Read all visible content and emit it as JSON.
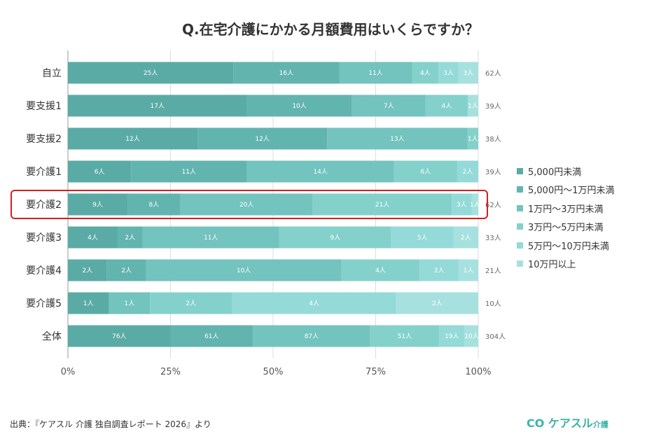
{
  "chart_data": {
    "type": "bar",
    "orientation": "horizontal",
    "stacked": "percent",
    "title": "Q.在宅介護にかかる月額費用はいくらですか？",
    "categories": [
      "自立",
      "要支援1",
      "要支援2",
      "要介護1",
      "要介護2",
      "要介護3",
      "要介護4",
      "要介護5",
      "全体"
    ],
    "totals": [
      "62人",
      "39人",
      "38人",
      "39人",
      "62人",
      "33人",
      "21人",
      "10人",
      "304人"
    ],
    "unit": "人",
    "series": [
      {
        "name": "5,000円未満",
        "color": "#5aaba6",
        "values": [
          25,
          17,
          12,
          6,
          9,
          4,
          2,
          1,
          76
        ]
      },
      {
        "name": "5,000円～1万円未満",
        "color": "#62b4af",
        "values": [
          16,
          10,
          12,
          11,
          8,
          2,
          2,
          0,
          61
        ]
      },
      {
        "name": "1万円～3万円未満",
        "color": "#73c3bf",
        "values": [
          11,
          7,
          13,
          14,
          20,
          11,
          10,
          1,
          87
        ]
      },
      {
        "name": "3万円～5万円未満",
        "color": "#84d1cc",
        "values": [
          4,
          4,
          1,
          6,
          21,
          9,
          4,
          2,
          51
        ]
      },
      {
        "name": "5万円～10万円未満",
        "color": "#94dad8",
        "values": [
          3,
          0,
          0,
          2,
          3,
          5,
          2,
          4,
          19
        ]
      },
      {
        "name": "10万円以上",
        "color": "#a6e1df",
        "values": [
          3,
          1,
          0,
          0,
          1,
          2,
          1,
          2,
          10
        ]
      }
    ],
    "xticks": [
      "0%",
      "25%",
      "50%",
      "75%",
      "100%"
    ],
    "xlim": [
      0,
      100
    ],
    "grid": true,
    "legend": "right",
    "highlight": {
      "category": "要介護2",
      "color": "#cc2222"
    }
  },
  "footer": {
    "source": "出典：『ケアスル 介護 独自調査レポート 2026』より",
    "logo": "ケアスル介護"
  }
}
